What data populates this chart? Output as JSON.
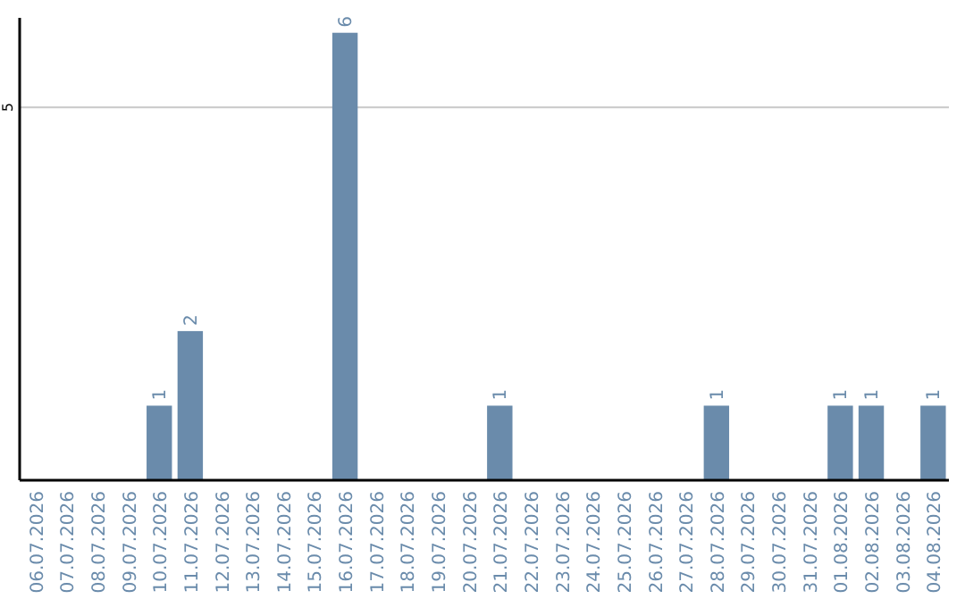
{
  "chart_data": {
    "type": "bar",
    "categories": [
      "06.07.2026",
      "07.07.2026",
      "08.07.2026",
      "09.07.2026",
      "10.07.2026",
      "11.07.2026",
      "12.07.2026",
      "13.07.2026",
      "14.07.2026",
      "15.07.2026",
      "16.07.2026",
      "17.07.2026",
      "18.07.2026",
      "19.07.2026",
      "20.07.2026",
      "21.07.2026",
      "22.07.2026",
      "23.07.2026",
      "24.07.2026",
      "25.07.2026",
      "26.07.2026",
      "27.07.2026",
      "28.07.2026",
      "29.07.2026",
      "30.07.2026",
      "31.07.2026",
      "01.08.2026",
      "02.08.2026",
      "03.08.2026",
      "04.08.2026"
    ],
    "values": [
      0,
      0,
      0,
      0,
      1,
      2,
      0,
      0,
      0,
      0,
      6,
      0,
      0,
      0,
      0,
      1,
      0,
      0,
      0,
      0,
      0,
      0,
      1,
      0,
      0,
      0,
      1,
      1,
      0,
      1
    ],
    "value_labels": [
      null,
      null,
      null,
      null,
      "1",
      "2",
      null,
      null,
      null,
      null,
      "6",
      null,
      null,
      null,
      null,
      "1",
      null,
      null,
      null,
      null,
      null,
      null,
      "1",
      null,
      null,
      null,
      "1",
      "1",
      null,
      "1"
    ],
    "color": "#6a8bab",
    "ylim": [
      0,
      6.2
    ],
    "yticks": [
      5
    ],
    "grid": "y"
  }
}
